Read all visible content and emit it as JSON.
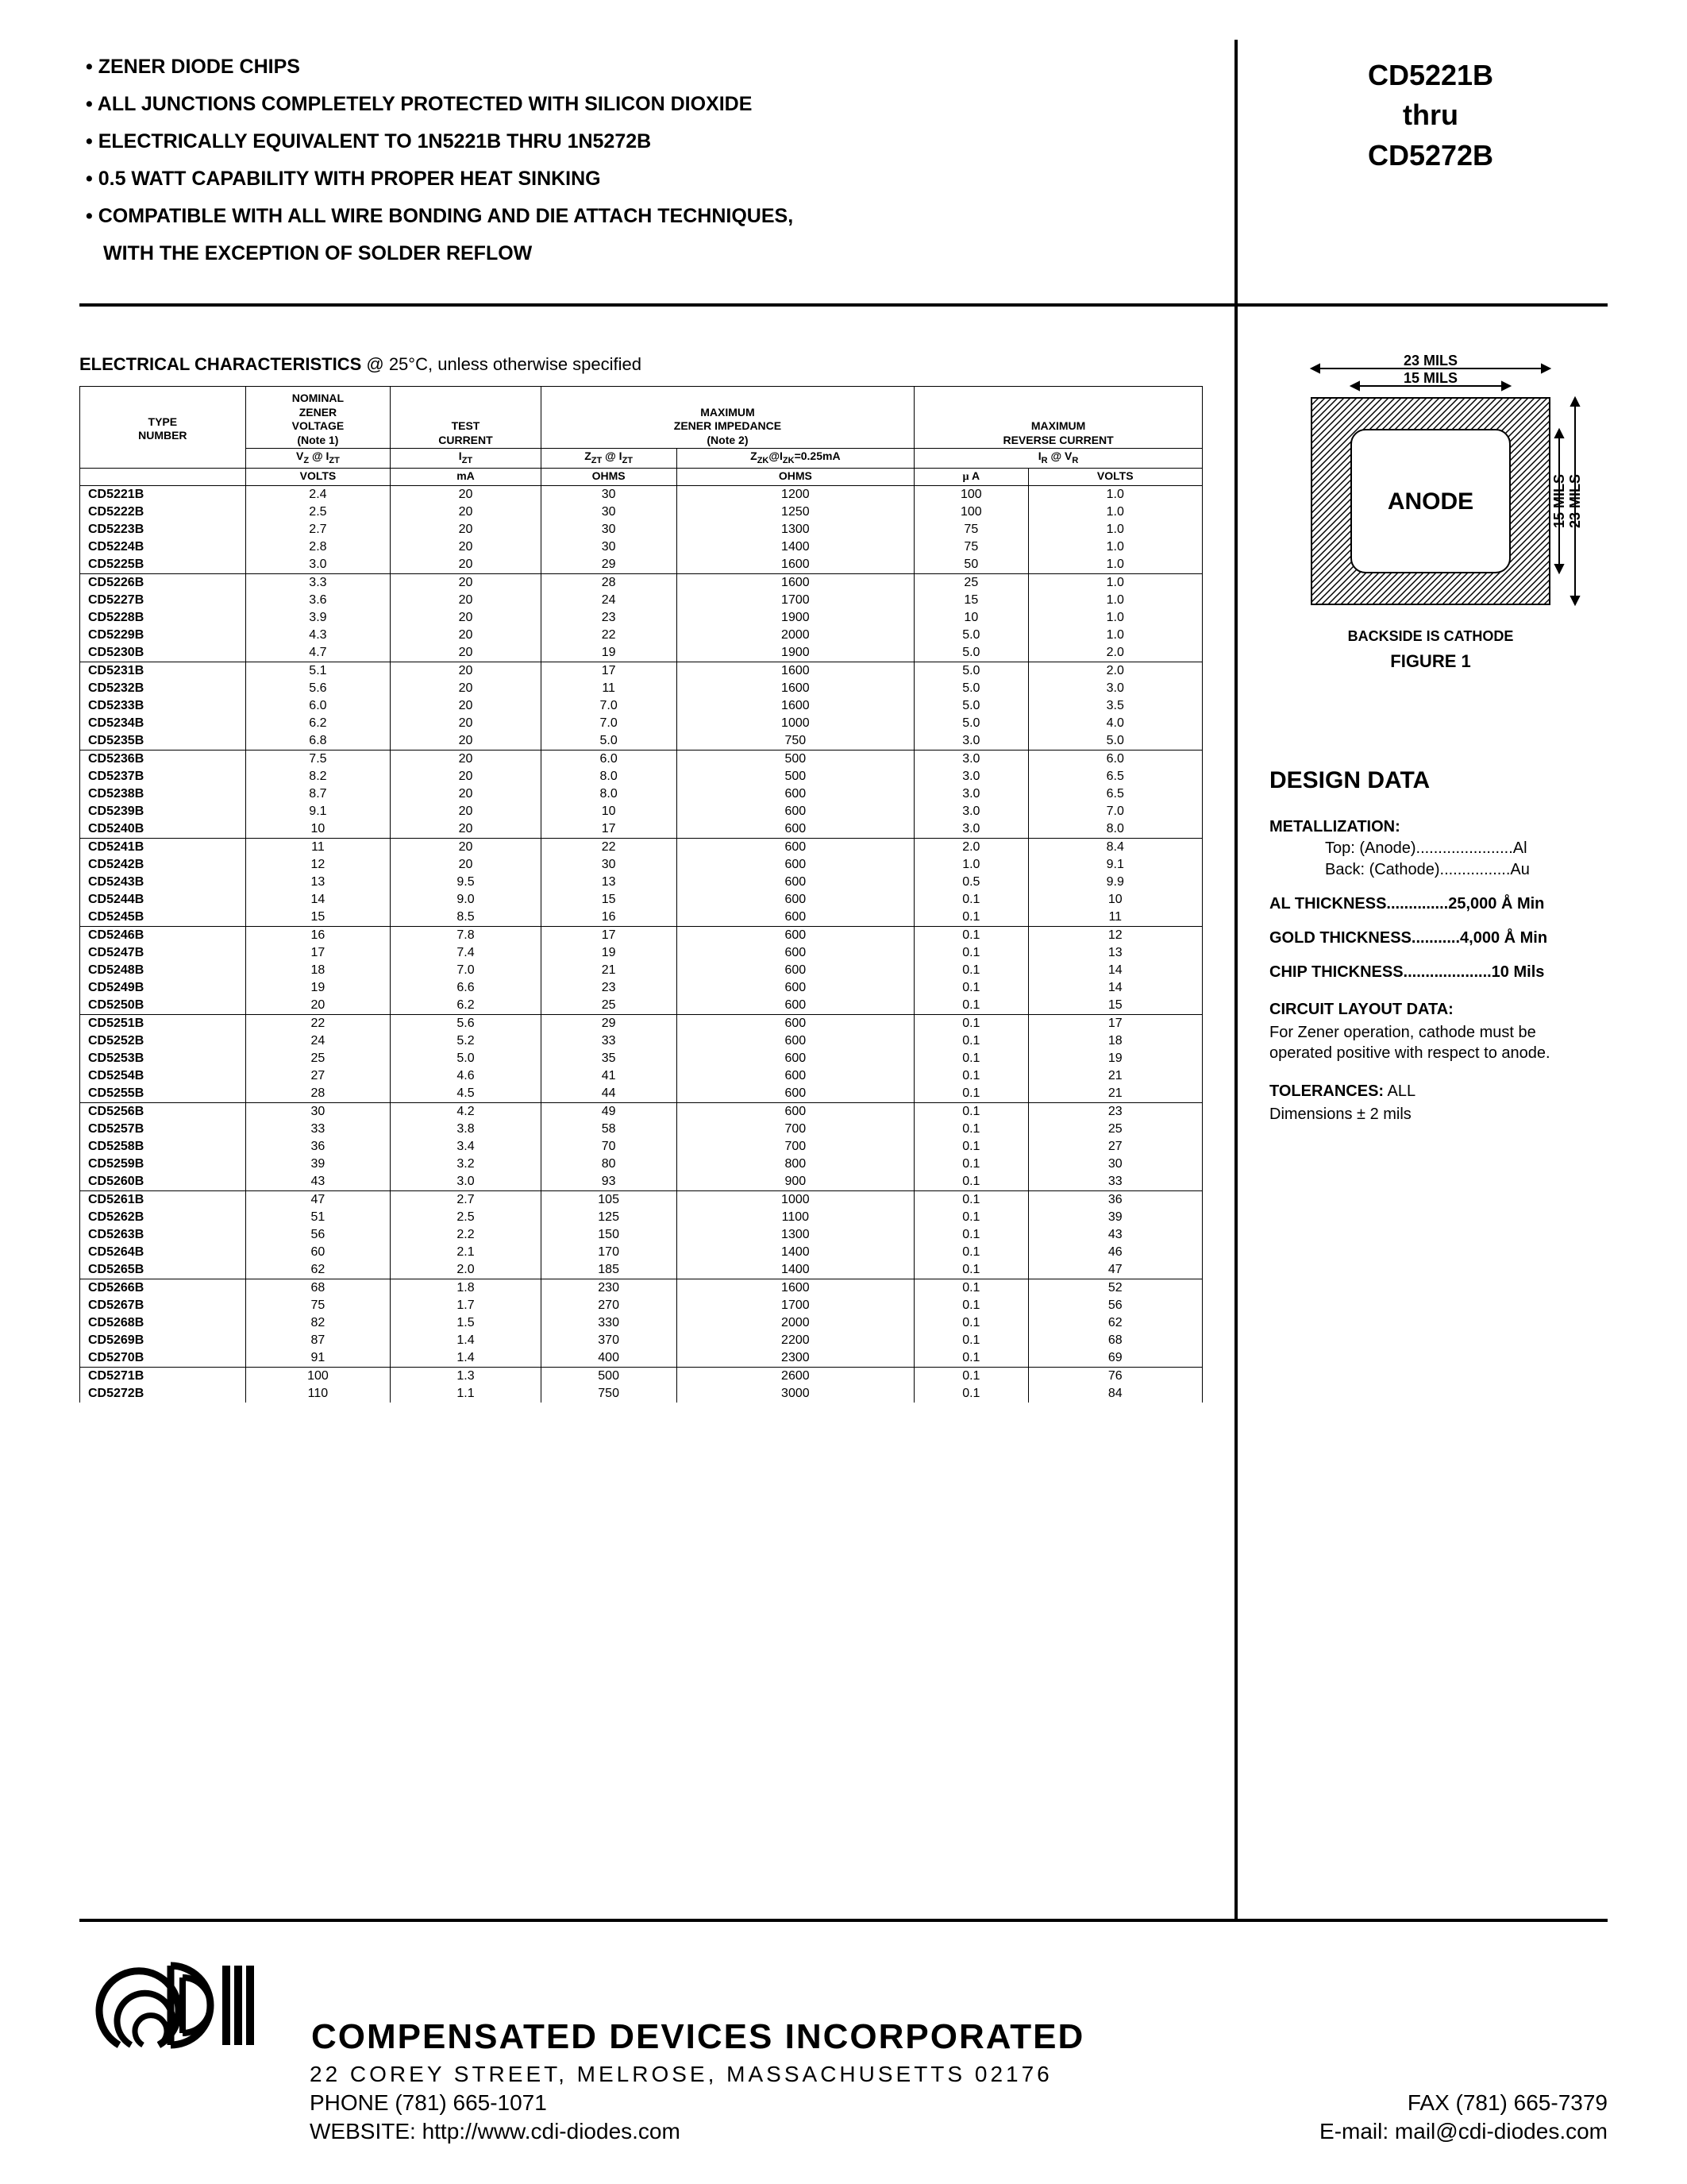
{
  "header": {
    "features": [
      "ZENER DIODE CHIPS",
      "ALL JUNCTIONS COMPLETELY PROTECTED WITH SILICON DIOXIDE",
      "ELECTRICALLY EQUIVALENT TO 1N5221B THRU 1N5272B",
      "0.5 WATT CAPABILITY WITH PROPER HEAT SINKING",
      "COMPATIBLE WITH ALL WIRE BONDING AND DIE ATTACH TECHNIQUES,"
    ],
    "feature_cont": "WITH THE EXCEPTION OF SOLDER REFLOW",
    "part_start": "CD5221B",
    "part_thru": "thru",
    "part_end": "CD5272B"
  },
  "table": {
    "title_a": "ELECTRICAL CHARACTERISTICS",
    "title_b": " @ 25°C, unless otherwise specified",
    "h_type": "TYPE NUMBER",
    "h_nom": "NOMINAL ZENER VOLTAGE (Note 1)",
    "h_test": "TEST CURRENT",
    "h_imp": "MAXIMUM ZENER IMPEDANCE (Note 2)",
    "h_rev": "MAXIMUM REVERSE CURRENT",
    "h_vz": "V",
    "h_vz2": "Z",
    "h_at": " @ I",
    "h_zt": "ZT",
    "sub_vz": "VZ @ IZT",
    "sub_izt": "IZT",
    "sub_zzt": "ZZT @ IZT",
    "sub_zzk": "ZZK@IZK=0.25mA",
    "sub_ir": "IR @ VR",
    "u_volts": "VOLTS",
    "u_ma": "mA",
    "u_ohms": "OHMS",
    "u_ua": "µ A",
    "rows": [
      [
        "CD5221B",
        "2.4",
        "20",
        "30",
        "1200",
        "100",
        "1.0",
        true
      ],
      [
        "CD5222B",
        "2.5",
        "20",
        "30",
        "1250",
        "100",
        "1.0",
        false
      ],
      [
        "CD5223B",
        "2.7",
        "20",
        "30",
        "1300",
        "75",
        "1.0",
        false
      ],
      [
        "CD5224B",
        "2.8",
        "20",
        "30",
        "1400",
        "75",
        "1.0",
        false
      ],
      [
        "CD5225B",
        "3.0",
        "20",
        "29",
        "1600",
        "50",
        "1.0",
        false
      ],
      [
        "CD5226B",
        "3.3",
        "20",
        "28",
        "1600",
        "25",
        "1.0",
        true
      ],
      [
        "CD5227B",
        "3.6",
        "20",
        "24",
        "1700",
        "15",
        "1.0",
        false
      ],
      [
        "CD5228B",
        "3.9",
        "20",
        "23",
        "1900",
        "10",
        "1.0",
        false
      ],
      [
        "CD5229B",
        "4.3",
        "20",
        "22",
        "2000",
        "5.0",
        "1.0",
        false
      ],
      [
        "CD5230B",
        "4.7",
        "20",
        "19",
        "1900",
        "5.0",
        "2.0",
        false
      ],
      [
        "CD5231B",
        "5.1",
        "20",
        "17",
        "1600",
        "5.0",
        "2.0",
        true
      ],
      [
        "CD5232B",
        "5.6",
        "20",
        "11",
        "1600",
        "5.0",
        "3.0",
        false
      ],
      [
        "CD5233B",
        "6.0",
        "20",
        "7.0",
        "1600",
        "5.0",
        "3.5",
        false
      ],
      [
        "CD5234B",
        "6.2",
        "20",
        "7.0",
        "1000",
        "5.0",
        "4.0",
        false
      ],
      [
        "CD5235B",
        "6.8",
        "20",
        "5.0",
        "750",
        "3.0",
        "5.0",
        false
      ],
      [
        "CD5236B",
        "7.5",
        "20",
        "6.0",
        "500",
        "3.0",
        "6.0",
        true
      ],
      [
        "CD5237B",
        "8.2",
        "20",
        "8.0",
        "500",
        "3.0",
        "6.5",
        false
      ],
      [
        "CD5238B",
        "8.7",
        "20",
        "8.0",
        "600",
        "3.0",
        "6.5",
        false
      ],
      [
        "CD5239B",
        "9.1",
        "20",
        "10",
        "600",
        "3.0",
        "7.0",
        false
      ],
      [
        "CD5240B",
        "10",
        "20",
        "17",
        "600",
        "3.0",
        "8.0",
        false
      ],
      [
        "CD5241B",
        "11",
        "20",
        "22",
        "600",
        "2.0",
        "8.4",
        true
      ],
      [
        "CD5242B",
        "12",
        "20",
        "30",
        "600",
        "1.0",
        "9.1",
        false
      ],
      [
        "CD5243B",
        "13",
        "9.5",
        "13",
        "600",
        "0.5",
        "9.9",
        false
      ],
      [
        "CD5244B",
        "14",
        "9.0",
        "15",
        "600",
        "0.1",
        "10",
        false
      ],
      [
        "CD5245B",
        "15",
        "8.5",
        "16",
        "600",
        "0.1",
        "11",
        false
      ],
      [
        "CD5246B",
        "16",
        "7.8",
        "17",
        "600",
        "0.1",
        "12",
        true
      ],
      [
        "CD5247B",
        "17",
        "7.4",
        "19",
        "600",
        "0.1",
        "13",
        false
      ],
      [
        "CD5248B",
        "18",
        "7.0",
        "21",
        "600",
        "0.1",
        "14",
        false
      ],
      [
        "CD5249B",
        "19",
        "6.6",
        "23",
        "600",
        "0.1",
        "14",
        false
      ],
      [
        "CD5250B",
        "20",
        "6.2",
        "25",
        "600",
        "0.1",
        "15",
        false
      ],
      [
        "CD5251B",
        "22",
        "5.6",
        "29",
        "600",
        "0.1",
        "17",
        true
      ],
      [
        "CD5252B",
        "24",
        "5.2",
        "33",
        "600",
        "0.1",
        "18",
        false
      ],
      [
        "CD5253B",
        "25",
        "5.0",
        "35",
        "600",
        "0.1",
        "19",
        false
      ],
      [
        "CD5254B",
        "27",
        "4.6",
        "41",
        "600",
        "0.1",
        "21",
        false
      ],
      [
        "CD5255B",
        "28",
        "4.5",
        "44",
        "600",
        "0.1",
        "21",
        false
      ],
      [
        "CD5256B",
        "30",
        "4.2",
        "49",
        "600",
        "0.1",
        "23",
        true
      ],
      [
        "CD5257B",
        "33",
        "3.8",
        "58",
        "700",
        "0.1",
        "25",
        false
      ],
      [
        "CD5258B",
        "36",
        "3.4",
        "70",
        "700",
        "0.1",
        "27",
        false
      ],
      [
        "CD5259B",
        "39",
        "3.2",
        "80",
        "800",
        "0.1",
        "30",
        false
      ],
      [
        "CD5260B",
        "43",
        "3.0",
        "93",
        "900",
        "0.1",
        "33",
        false
      ],
      [
        "CD5261B",
        "47",
        "2.7",
        "105",
        "1000",
        "0.1",
        "36",
        true
      ],
      [
        "CD5262B",
        "51",
        "2.5",
        "125",
        "1100",
        "0.1",
        "39",
        false
      ],
      [
        "CD5263B",
        "56",
        "2.2",
        "150",
        "1300",
        "0.1",
        "43",
        false
      ],
      [
        "CD5264B",
        "60",
        "2.1",
        "170",
        "1400",
        "0.1",
        "46",
        false
      ],
      [
        "CD5265B",
        "62",
        "2.0",
        "185",
        "1400",
        "0.1",
        "47",
        false
      ],
      [
        "CD5266B",
        "68",
        "1.8",
        "230",
        "1600",
        "0.1",
        "52",
        true
      ],
      [
        "CD5267B",
        "75",
        "1.7",
        "270",
        "1700",
        "0.1",
        "56",
        false
      ],
      [
        "CD5268B",
        "82",
        "1.5",
        "330",
        "2000",
        "0.1",
        "62",
        false
      ],
      [
        "CD5269B",
        "87",
        "1.4",
        "370",
        "2200",
        "0.1",
        "68",
        false
      ],
      [
        "CD5270B",
        "91",
        "1.4",
        "400",
        "2300",
        "0.1",
        "69",
        false
      ],
      [
        "CD5271B",
        "100",
        "1.3",
        "500",
        "2600",
        "0.1",
        "76",
        true
      ],
      [
        "CD5272B",
        "110",
        "1.1",
        "750",
        "3000",
        "0.1",
        "84",
        false
      ]
    ]
  },
  "figure": {
    "outer_dim": "23 MILS",
    "inner_dim": "15 MILS",
    "anode": "ANODE",
    "caption": "BACKSIDE IS CATHODE",
    "label": "FIGURE 1"
  },
  "design": {
    "title": "DESIGN DATA",
    "met_h": "METALLIZATION:",
    "met_top": "Top: (Anode)......................Al",
    "met_back": "Back: (Cathode)................Au",
    "al": "AL THICKNESS..............25,000 Å Min",
    "gold": "GOLD THICKNESS...........4,000 Å Min",
    "chip": "CHIP THICKNESS....................10 Mils",
    "cld_h": "CIRCUIT LAYOUT DATA:",
    "cld_p": "For Zener operation, cathode must be operated positive with respect to anode.",
    "tol_h": "TOLERANCES:",
    "tol_v": " ALL",
    "tol_p": "Dimensions ± 2 mils"
  },
  "footer": {
    "company": "COMPENSATED DEVICES INCORPORATED",
    "address": "22 COREY STREET, MELROSE, MASSACHUSETTS 02176",
    "phone": "PHONE (781) 665-1071",
    "fax": "FAX (781) 665-7379",
    "web": "WEBSITE:  http://www.cdi-diodes.com",
    "email": "E-mail: mail@cdi-diodes.com"
  }
}
